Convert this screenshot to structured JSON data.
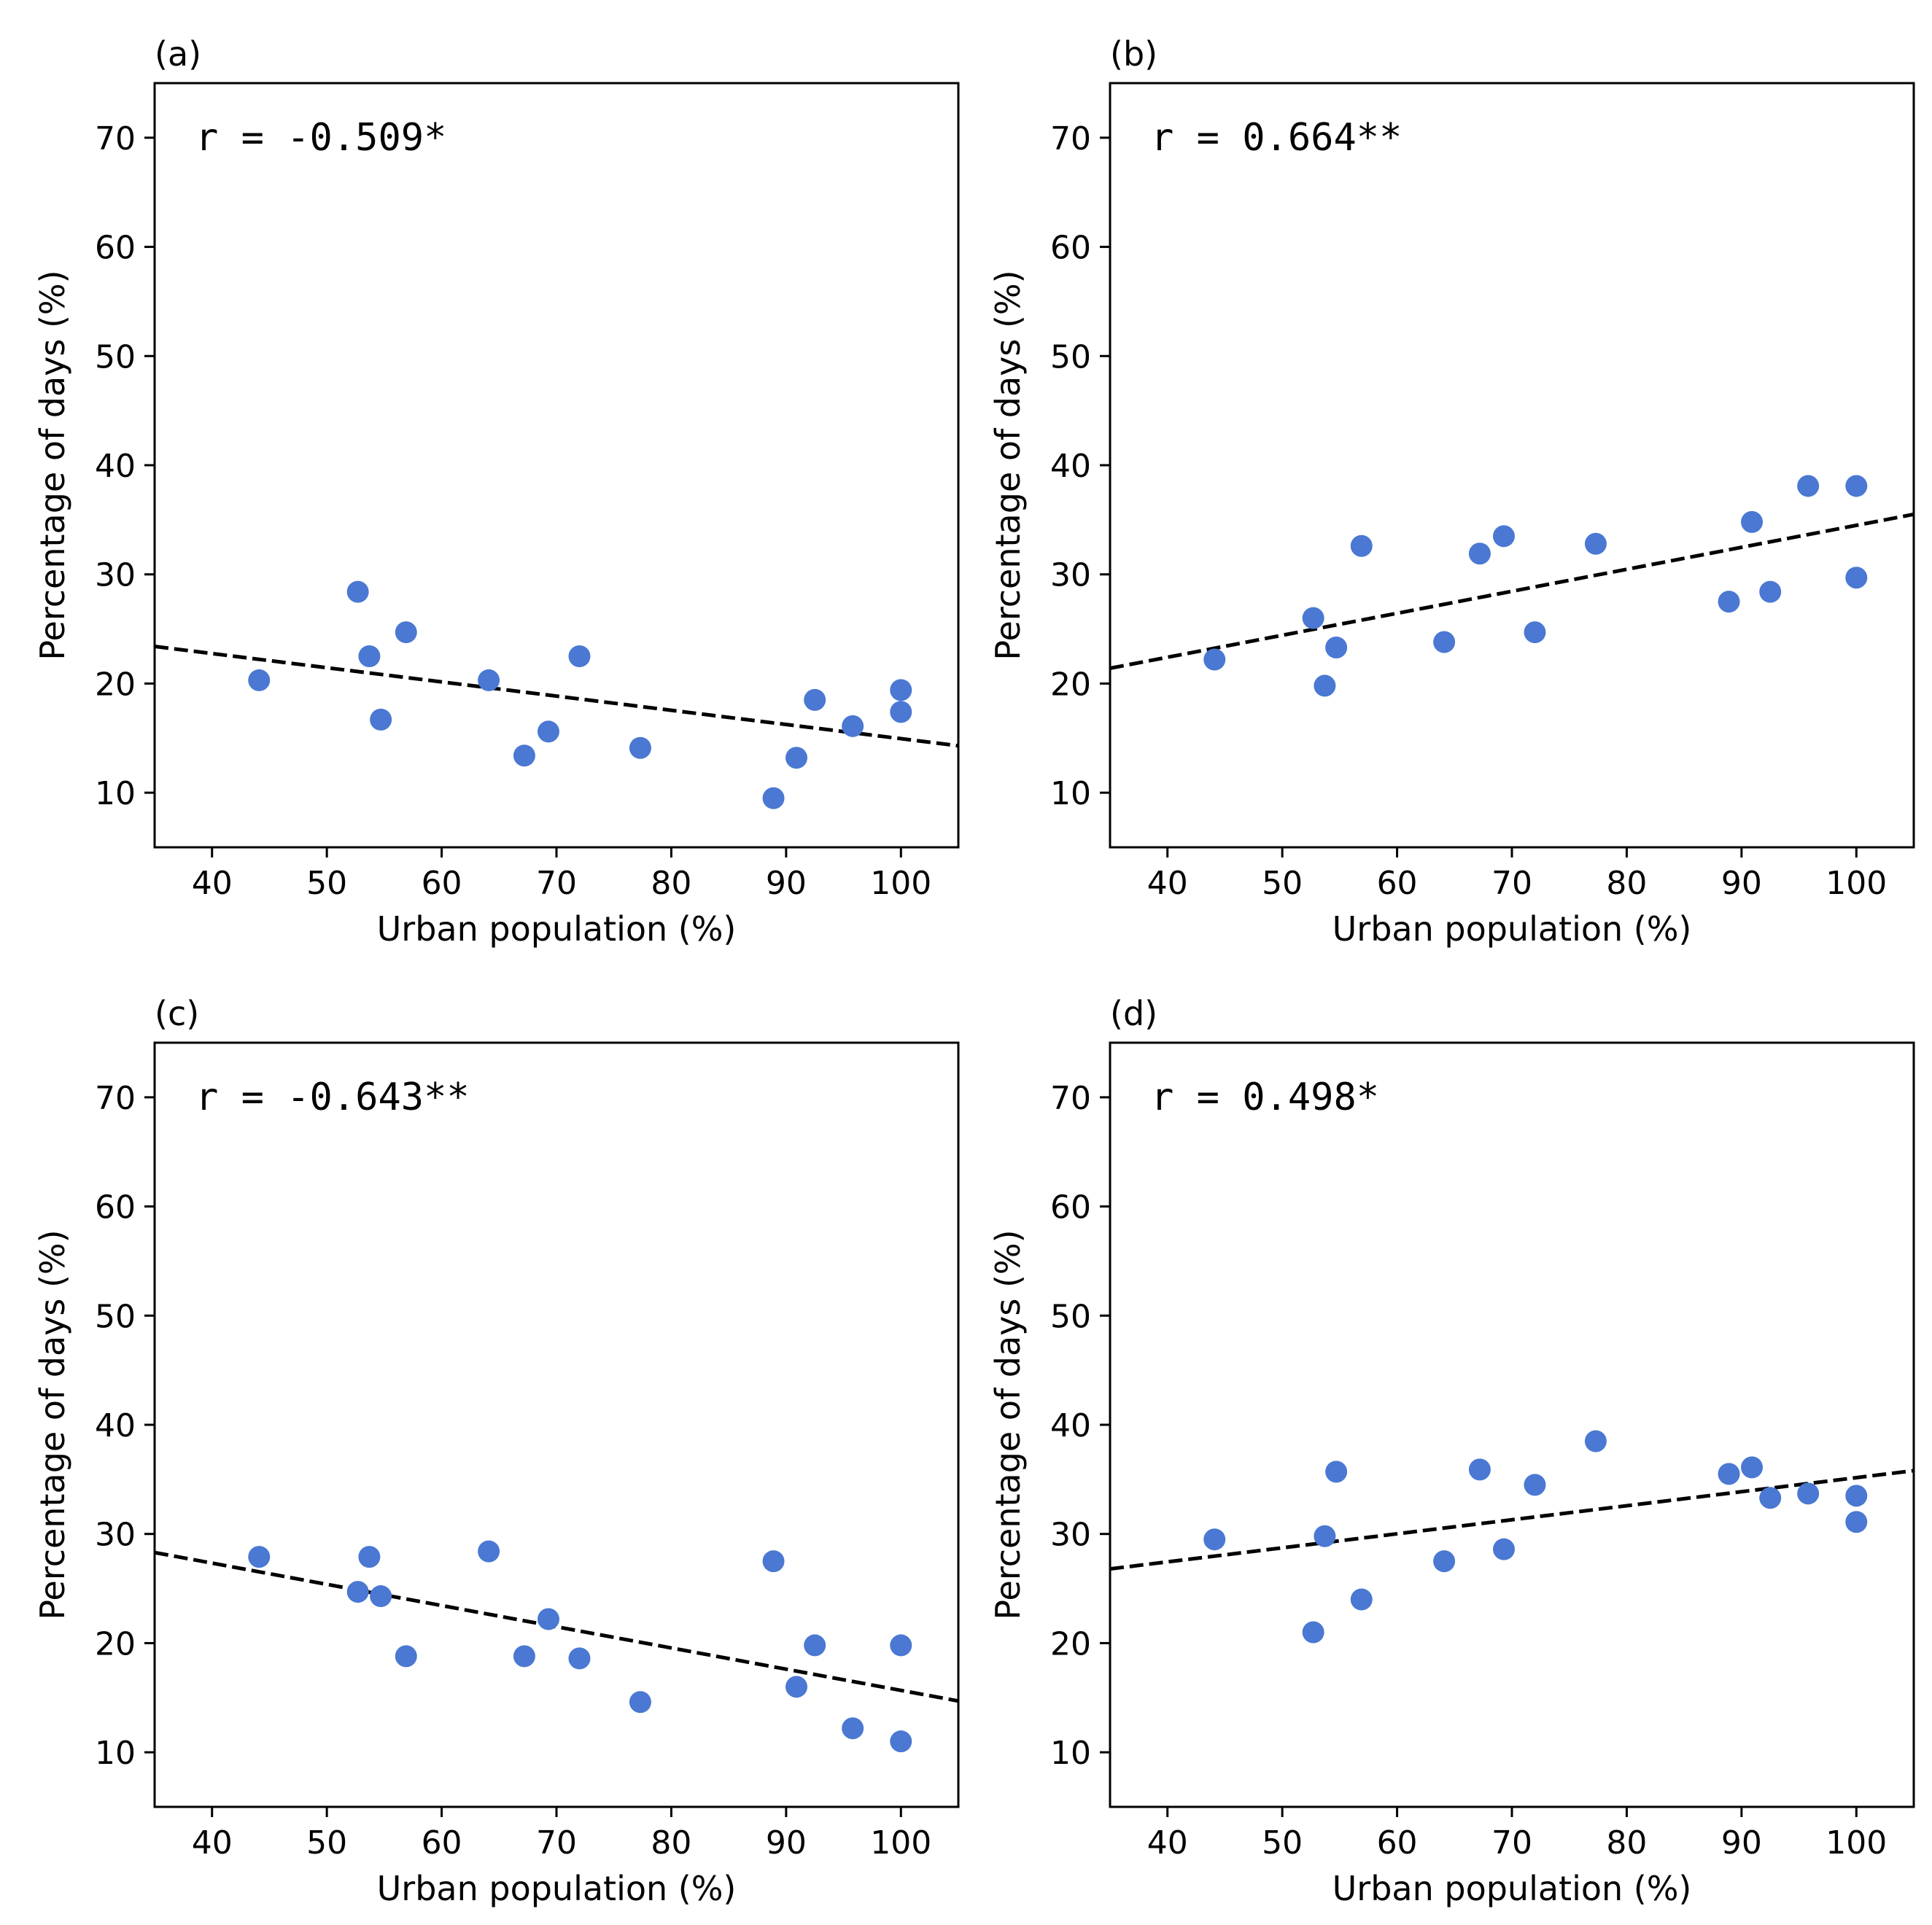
{
  "figure": {
    "xlabel": "Urban population (%)",
    "ylabel": "Percentage of days (%)",
    "xlim": [
      35,
      105
    ],
    "ylim": [
      5,
      75
    ],
    "xticks": [
      40,
      50,
      60,
      70,
      80,
      90,
      100
    ],
    "yticks": [
      10,
      20,
      30,
      40,
      50,
      60,
      70
    ],
    "marker_color": "#4a78d2",
    "fit_line_color": "#000000"
  },
  "chart_data": [
    {
      "type": "scatter",
      "panel": "(a)",
      "annotation": "r = -0.509*",
      "xlabel": "Urban population (%)",
      "ylabel": "Percentage of days (%)",
      "xlim": [
        35,
        105
      ],
      "ylim": [
        5,
        75
      ],
      "grid": false,
      "points": [
        {
          "x": 44.1,
          "y": 20.3
        },
        {
          "x": 52.7,
          "y": 28.4
        },
        {
          "x": 53.7,
          "y": 22.5
        },
        {
          "x": 54.7,
          "y": 16.7
        },
        {
          "x": 56.9,
          "y": 24.7
        },
        {
          "x": 64.1,
          "y": 20.3
        },
        {
          "x": 67.2,
          "y": 13.4
        },
        {
          "x": 69.3,
          "y": 15.6
        },
        {
          "x": 72.0,
          "y": 22.5
        },
        {
          "x": 77.3,
          "y": 14.1
        },
        {
          "x": 88.9,
          "y": 9.5
        },
        {
          "x": 90.9,
          "y": 13.2
        },
        {
          "x": 92.5,
          "y": 18.5
        },
        {
          "x": 95.8,
          "y": 16.1
        },
        {
          "x": 100.0,
          "y": 19.4
        },
        {
          "x": 100.0,
          "y": 17.4
        }
      ],
      "fit_line": {
        "x": [
          35,
          105
        ],
        "y": [
          23.4,
          14.3
        ]
      }
    },
    {
      "type": "scatter",
      "panel": "(b)",
      "annotation": "r = 0.664**",
      "xlabel": "Urban population (%)",
      "ylabel": "Percentage of days (%)",
      "xlim": [
        35,
        105
      ],
      "ylim": [
        5,
        75
      ],
      "grid": false,
      "points": [
        {
          "x": 44.1,
          "y": 22.2
        },
        {
          "x": 52.7,
          "y": 26.0
        },
        {
          "x": 53.7,
          "y": 19.8
        },
        {
          "x": 54.7,
          "y": 23.3
        },
        {
          "x": 56.9,
          "y": 32.6
        },
        {
          "x": 64.1,
          "y": 23.8
        },
        {
          "x": 67.2,
          "y": 31.9
        },
        {
          "x": 69.3,
          "y": 33.5
        },
        {
          "x": 72.0,
          "y": 24.7
        },
        {
          "x": 77.3,
          "y": 32.8
        },
        {
          "x": 88.9,
          "y": 27.5
        },
        {
          "x": 90.9,
          "y": 34.8
        },
        {
          "x": 92.5,
          "y": 28.4
        },
        {
          "x": 95.8,
          "y": 38.1
        },
        {
          "x": 100.0,
          "y": 38.1
        },
        {
          "x": 100.0,
          "y": 29.7
        }
      ],
      "fit_line": {
        "x": [
          35,
          105
        ],
        "y": [
          21.4,
          35.5
        ]
      }
    },
    {
      "type": "scatter",
      "panel": "(c)",
      "annotation": "r = -0.643**",
      "xlabel": "Urban population (%)",
      "ylabel": "Percentage of days (%)",
      "xlim": [
        35,
        105
      ],
      "ylim": [
        5,
        75
      ],
      "grid": false,
      "points": [
        {
          "x": 44.1,
          "y": 27.9
        },
        {
          "x": 52.7,
          "y": 24.7
        },
        {
          "x": 53.7,
          "y": 27.9
        },
        {
          "x": 54.7,
          "y": 24.3
        },
        {
          "x": 56.9,
          "y": 18.8
        },
        {
          "x": 64.1,
          "y": 28.4
        },
        {
          "x": 67.2,
          "y": 18.8
        },
        {
          "x": 69.3,
          "y": 22.2
        },
        {
          "x": 72.0,
          "y": 18.6
        },
        {
          "x": 77.3,
          "y": 14.6
        },
        {
          "x": 88.9,
          "y": 27.5
        },
        {
          "x": 90.9,
          "y": 16.0
        },
        {
          "x": 92.5,
          "y": 19.8
        },
        {
          "x": 95.8,
          "y": 12.2
        },
        {
          "x": 100.0,
          "y": 19.8
        },
        {
          "x": 100.0,
          "y": 11.0
        }
      ],
      "fit_line": {
        "x": [
          35,
          105
        ],
        "y": [
          28.3,
          14.7
        ]
      }
    },
    {
      "type": "scatter",
      "panel": "(d)",
      "annotation": "r = 0.498*",
      "xlabel": "Urban population (%)",
      "ylabel": "Percentage of days (%)",
      "xlim": [
        35,
        105
      ],
      "ylim": [
        5,
        75
      ],
      "grid": false,
      "points": [
        {
          "x": 44.1,
          "y": 29.5
        },
        {
          "x": 52.7,
          "y": 21.0
        },
        {
          "x": 53.7,
          "y": 29.8
        },
        {
          "x": 54.7,
          "y": 35.7
        },
        {
          "x": 56.9,
          "y": 24.0
        },
        {
          "x": 64.1,
          "y": 27.5
        },
        {
          "x": 67.2,
          "y": 35.9
        },
        {
          "x": 69.3,
          "y": 28.6
        },
        {
          "x": 72.0,
          "y": 34.5
        },
        {
          "x": 77.3,
          "y": 38.5
        },
        {
          "x": 88.9,
          "y": 35.5
        },
        {
          "x": 90.9,
          "y": 36.1
        },
        {
          "x": 92.5,
          "y": 33.3
        },
        {
          "x": 95.8,
          "y": 33.7
        },
        {
          "x": 100.0,
          "y": 33.5
        },
        {
          "x": 100.0,
          "y": 31.1
        }
      ],
      "fit_line": {
        "x": [
          35,
          105
        ],
        "y": [
          26.8,
          35.8
        ]
      }
    }
  ]
}
